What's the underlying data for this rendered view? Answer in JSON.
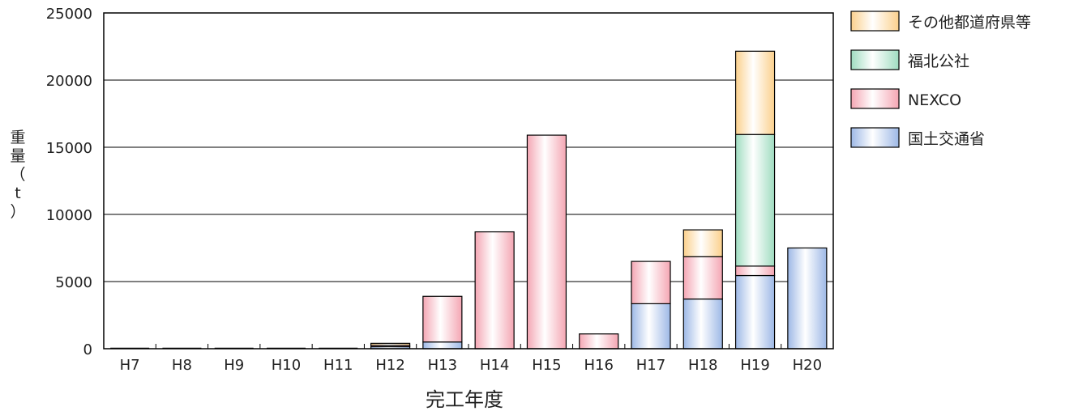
{
  "chart_data": {
    "type": "bar",
    "stacked": true,
    "xlabel": "完工年度",
    "ylabel": "重量（t）",
    "ylim": [
      0,
      25000
    ],
    "yticks": [
      "0",
      "5000",
      "10000",
      "15000",
      "20000",
      "25000"
    ],
    "categories": [
      "H7",
      "H8",
      "H9",
      "H10",
      "H11",
      "H12",
      "H13",
      "H14",
      "H15",
      "H16",
      "H17",
      "H18",
      "H19",
      "H20"
    ],
    "grid": true,
    "legend_position": "right",
    "series": [
      {
        "name": "国土交通省",
        "color": "#9db8e6",
        "values": [
          0,
          0,
          0,
          0,
          0,
          150,
          500,
          0,
          0,
          0,
          3350,
          3700,
          5450,
          7500
        ]
      },
      {
        "name": "NEXCO",
        "color": "#f4a6b3",
        "values": [
          0,
          0,
          0,
          0,
          0,
          100,
          3400,
          8700,
          15900,
          1100,
          3150,
          3150,
          700,
          0
        ]
      },
      {
        "name": "福北公社",
        "color": "#9fdcc0",
        "values": [
          0,
          0,
          0,
          0,
          0,
          0,
          0,
          0,
          0,
          0,
          0,
          0,
          9800,
          0
        ]
      },
      {
        "name": "その他都道府県等",
        "color": "#fbd08c",
        "values": [
          0,
          0,
          0,
          0,
          0,
          150,
          0,
          0,
          0,
          0,
          0,
          2000,
          6200,
          0
        ]
      }
    ]
  }
}
